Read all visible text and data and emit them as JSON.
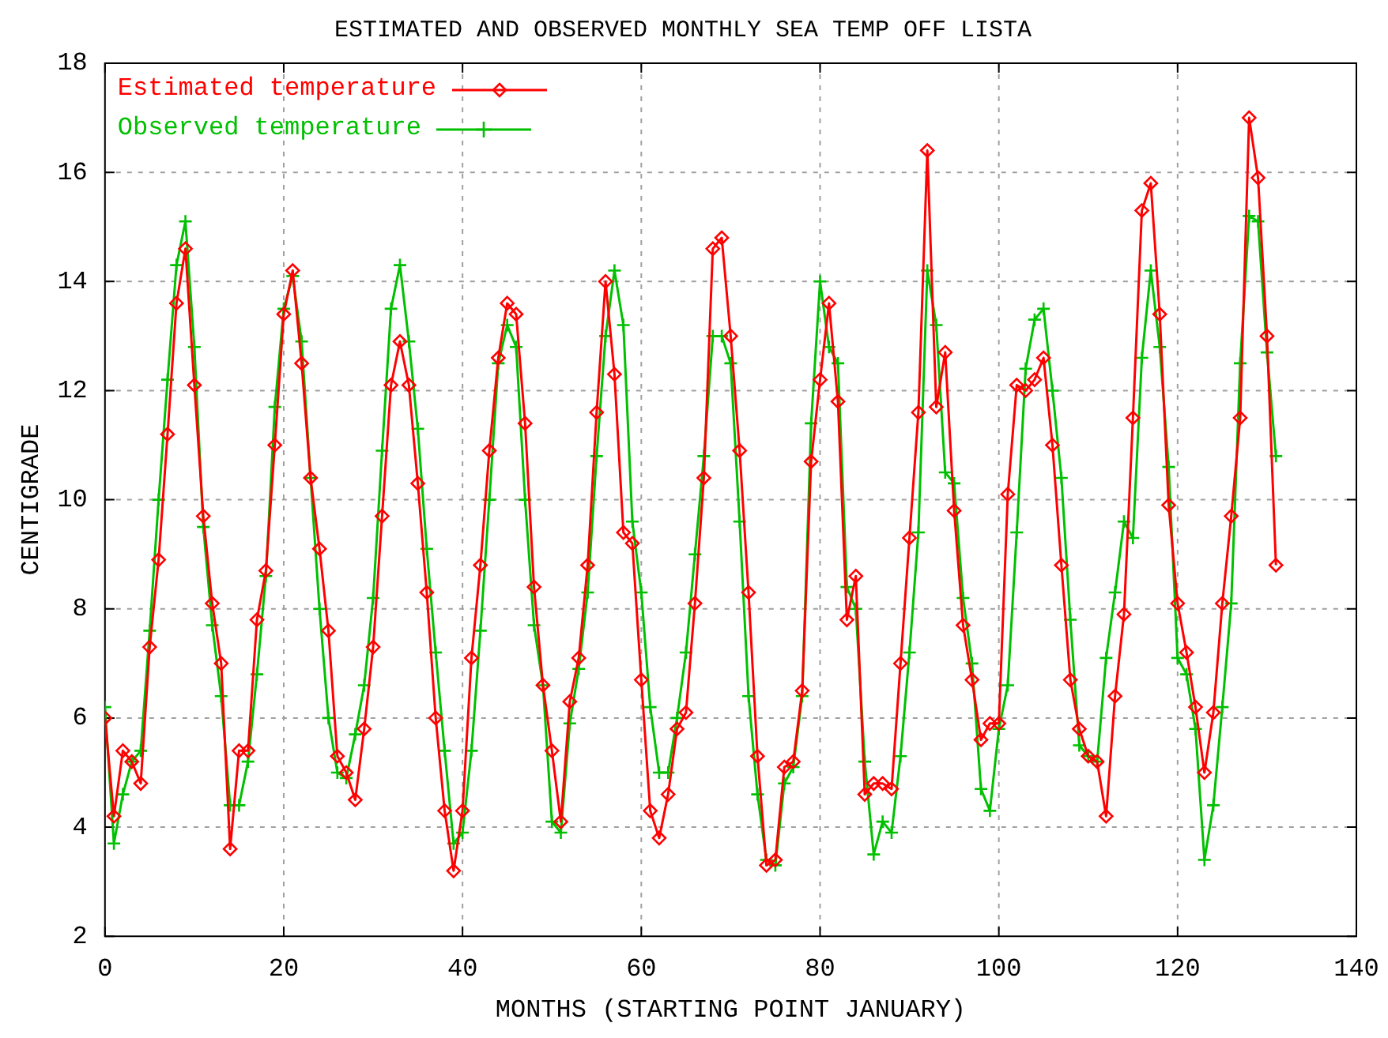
{
  "chart_data": {
    "type": "line",
    "title": "ESTIMATED AND OBSERVED MONTHLY SEA TEMP OFF LISTA",
    "xlabel": "MONTHS (STARTING POINT JANUARY)",
    "ylabel": "CENTIGRADE",
    "x": [
      0,
      1,
      2,
      3,
      4,
      5,
      6,
      7,
      8,
      9,
      10,
      11,
      12,
      13,
      14,
      15,
      16,
      17,
      18,
      19,
      20,
      21,
      22,
      23,
      24,
      25,
      26,
      27,
      28,
      29,
      30,
      31,
      32,
      33,
      34,
      35,
      36,
      37,
      38,
      39,
      40,
      41,
      42,
      43,
      44,
      45,
      46,
      47,
      48,
      49,
      50,
      51,
      52,
      53,
      54,
      55,
      56,
      57,
      58,
      59,
      60,
      61,
      62,
      63,
      64,
      65,
      66,
      67,
      68,
      69,
      70,
      71,
      72,
      73,
      74,
      75,
      76,
      77,
      78,
      79,
      80,
      81,
      82,
      83,
      84,
      85,
      86,
      87,
      88,
      89,
      90,
      91,
      92,
      93,
      94,
      95,
      96,
      97,
      98,
      99,
      100,
      101,
      102,
      103,
      104,
      105,
      106,
      107,
      108,
      109,
      110,
      111,
      112,
      113,
      114,
      115,
      116,
      117,
      118,
      119,
      120,
      121,
      122,
      123,
      124,
      125,
      126,
      127,
      128,
      129,
      130,
      131
    ],
    "series": [
      {
        "name": "Estimated temperature",
        "color": "#ff0000",
        "marker": "diamond",
        "values": [
          6.0,
          4.2,
          5.4,
          5.2,
          4.8,
          7.3,
          8.9,
          11.2,
          13.6,
          14.6,
          12.1,
          9.7,
          8.1,
          7.0,
          3.6,
          5.4,
          5.4,
          7.8,
          8.7,
          11.0,
          13.4,
          14.2,
          12.5,
          10.4,
          9.1,
          7.6,
          5.3,
          5.0,
          4.5,
          5.8,
          7.3,
          9.7,
          12.1,
          12.9,
          12.1,
          10.3,
          8.3,
          6.0,
          4.3,
          3.2,
          4.3,
          7.1,
          8.8,
          10.9,
          12.6,
          13.6,
          13.4,
          11.4,
          8.4,
          6.6,
          5.4,
          4.1,
          6.3,
          7.1,
          8.8,
          11.6,
          14.0,
          12.3,
          9.4,
          9.2,
          6.7,
          4.3,
          3.8,
          4.6,
          5.8,
          6.1,
          8.1,
          10.4,
          14.6,
          14.8,
          13.0,
          10.9,
          8.3,
          5.3,
          3.3,
          3.4,
          5.1,
          5.2,
          6.5,
          10.7,
          12.2,
          13.6,
          11.8,
          7.8,
          8.6,
          4.6,
          4.8,
          4.8,
          4.7,
          7.0,
          9.3,
          11.6,
          16.4,
          11.7,
          12.7,
          9.8,
          7.7,
          6.7,
          5.6,
          5.9,
          5.9,
          10.1,
          12.1,
          12.0,
          12.2,
          12.6,
          11.0,
          8.8,
          6.7,
          5.8,
          5.3,
          5.2,
          4.2,
          6.4,
          7.9,
          11.5,
          15.3,
          15.8,
          13.4,
          9.9,
          8.1,
          7.2,
          6.2,
          5.0,
          6.1,
          8.1,
          9.7,
          11.5,
          17.0,
          15.9,
          13.0,
          8.8
        ]
      },
      {
        "name": "Observed temperature",
        "color": "#00c000",
        "marker": "cross",
        "values": [
          6.2,
          3.7,
          4.6,
          5.2,
          5.4,
          7.6,
          10.0,
          12.2,
          14.3,
          15.1,
          12.8,
          9.5,
          7.7,
          6.4,
          4.4,
          4.4,
          5.2,
          6.8,
          8.6,
          11.7,
          13.5,
          14.1,
          12.9,
          10.4,
          8.0,
          6.0,
          5.0,
          4.9,
          5.7,
          6.6,
          8.2,
          10.9,
          13.5,
          14.3,
          12.9,
          11.3,
          9.1,
          7.2,
          5.4,
          3.7,
          3.9,
          5.4,
          7.6,
          10.0,
          12.5,
          13.2,
          12.8,
          10.0,
          7.7,
          6.6,
          4.1,
          3.9,
          5.9,
          6.9,
          8.3,
          10.8,
          13.0,
          14.2,
          13.2,
          9.6,
          8.3,
          6.2,
          5.0,
          5.0,
          6.0,
          7.2,
          9.0,
          10.8,
          13.0,
          13.0,
          12.5,
          9.6,
          6.4,
          4.6,
          3.4,
          3.3,
          4.8,
          5.1,
          6.4,
          11.4,
          14.0,
          12.8,
          12.5,
          8.4,
          8.0,
          5.2,
          3.5,
          4.1,
          3.9,
          5.3,
          7.2,
          9.4,
          14.2,
          13.2,
          10.5,
          10.3,
          8.2,
          7.0,
          4.7,
          4.3,
          5.8,
          6.6,
          9.4,
          12.4,
          13.3,
          13.5,
          12.0,
          10.4,
          7.8,
          5.5,
          5.3,
          5.2,
          7.1,
          8.3,
          9.6,
          9.3,
          12.6,
          14.2,
          12.8,
          10.6,
          7.1,
          6.8,
          5.8,
          3.4,
          4.4,
          6.2,
          8.1,
          12.5,
          15.2,
          15.1,
          12.7,
          10.8
        ]
      }
    ],
    "xlim": [
      0,
      140
    ],
    "xticks": [
      0,
      20,
      40,
      60,
      80,
      100,
      120,
      140
    ],
    "ylim": [
      2,
      18
    ],
    "yticks": [
      2,
      4,
      6,
      8,
      10,
      12,
      14,
      16,
      18
    ],
    "grid": true,
    "legend": "top left",
    "line_style": "solid"
  }
}
